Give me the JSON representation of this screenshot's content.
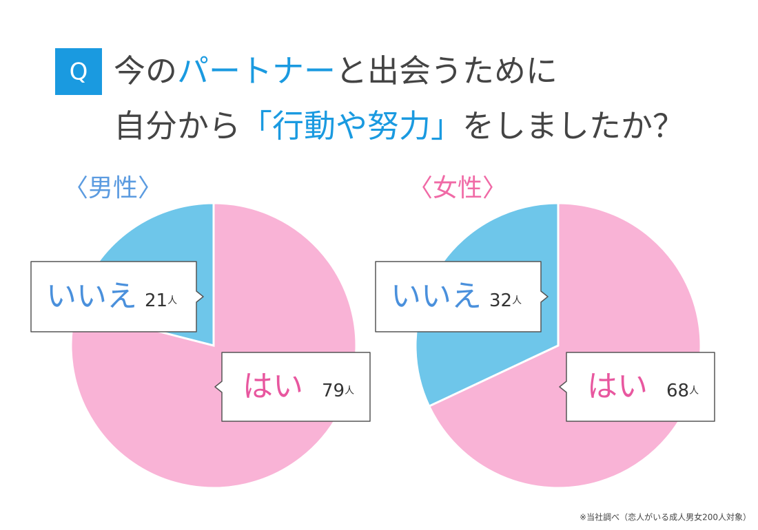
{
  "question": {
    "badge": "Q",
    "lines": [
      [
        {
          "text": "今の",
          "color": "#444444"
        },
        {
          "text": "パートナー",
          "color": "#1a9ae0"
        },
        {
          "text": "と出会うために",
          "color": "#444444"
        }
      ],
      [
        {
          "text": "自分から",
          "color": "#444444"
        },
        {
          "text": "「行動や努力」",
          "color": "#1a9ae0"
        },
        {
          "text": "をしましたか？",
          "color": "#444444"
        }
      ]
    ]
  },
  "note": "※当社調べ（恋人がいる成人男女200人対象）",
  "chart_data": [
    {
      "type": "pie",
      "title": "〈男性〉",
      "title_color": "#5b9be0",
      "categories": [
        "はい",
        "いいえ"
      ],
      "values": [
        79,
        21
      ],
      "unit": "人",
      "colors": [
        "#f9b3d6",
        "#6ec6ea"
      ],
      "label_colors": [
        "#e8579f",
        "#4a90dc"
      ]
    },
    {
      "type": "pie",
      "title": "〈女性〉",
      "title_color": "#f06aa6",
      "categories": [
        "はい",
        "いいえ"
      ],
      "values": [
        68,
        32
      ],
      "unit": "人",
      "colors": [
        "#f9b3d6",
        "#6ec6ea"
      ],
      "label_colors": [
        "#e8579f",
        "#4a90dc"
      ]
    }
  ]
}
